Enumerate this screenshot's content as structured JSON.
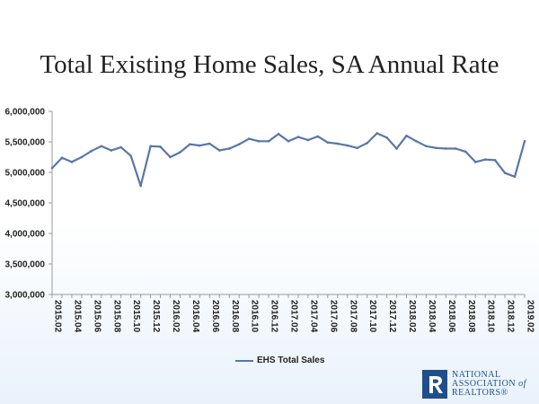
{
  "colors": {
    "series": "#5877a8",
    "axis": "#9a9a9a",
    "logo": "#1f4e8c"
  },
  "logo": {
    "icon": "realtor-r-icon",
    "line1": "NATIONAL",
    "line2a": "ASSOCIATION ",
    "line2b": "of",
    "line3": "REALTORS®"
  },
  "chart_data": {
    "type": "line",
    "title": "Total Existing Home Sales, SA Annual Rate",
    "xlabel": "",
    "ylabel": "",
    "ylim": [
      3000000,
      6000000
    ],
    "yticks": [
      "3,000,000",
      "3,500,000",
      "4,000,000",
      "4,500,000",
      "5,000,000",
      "5,500,000",
      "6,000,000"
    ],
    "xticks": [
      "2015.02",
      "2015.04",
      "2015.06",
      "2015.08",
      "2015.10",
      "2015.12",
      "2016.02",
      "2016.04",
      "2016.06",
      "2016.08",
      "2016.10",
      "2016.12",
      "2017.02",
      "2017.04",
      "2017.06",
      "2017.08",
      "2017.10",
      "2017.12",
      "2018.02",
      "2018.04",
      "2018.06",
      "2018.08",
      "2018.10",
      "2018.12",
      "2019.02"
    ],
    "legend": "bottom",
    "grid": false,
    "x": [
      "2015.02",
      "2015.03",
      "2015.04",
      "2015.05",
      "2015.06",
      "2015.07",
      "2015.08",
      "2015.09",
      "2015.10",
      "2015.11",
      "2015.12",
      "2016.01",
      "2016.02",
      "2016.03",
      "2016.04",
      "2016.05",
      "2016.06",
      "2016.07",
      "2016.08",
      "2016.09",
      "2016.10",
      "2016.11",
      "2016.12",
      "2017.01",
      "2017.02",
      "2017.03",
      "2017.04",
      "2017.05",
      "2017.06",
      "2017.07",
      "2017.08",
      "2017.09",
      "2017.10",
      "2017.11",
      "2017.12",
      "2018.01",
      "2018.02",
      "2018.03",
      "2018.04",
      "2018.05",
      "2018.06",
      "2018.07",
      "2018.08",
      "2018.09",
      "2018.10",
      "2018.11",
      "2018.12",
      "2019.01",
      "2019.02"
    ],
    "series": [
      {
        "name": "EHS Total Sales",
        "values": [
          5070000,
          5240000,
          5170000,
          5250000,
          5350000,
          5430000,
          5360000,
          5410000,
          5270000,
          4780000,
          5430000,
          5420000,
          5250000,
          5330000,
          5460000,
          5440000,
          5470000,
          5360000,
          5390000,
          5460000,
          5550000,
          5510000,
          5510000,
          5630000,
          5510000,
          5580000,
          5530000,
          5590000,
          5490000,
          5470000,
          5440000,
          5400000,
          5480000,
          5640000,
          5570000,
          5390000,
          5600000,
          5510000,
          5430000,
          5400000,
          5390000,
          5390000,
          5340000,
          5170000,
          5210000,
          5200000,
          4990000,
          4930000,
          5510000
        ]
      }
    ]
  }
}
